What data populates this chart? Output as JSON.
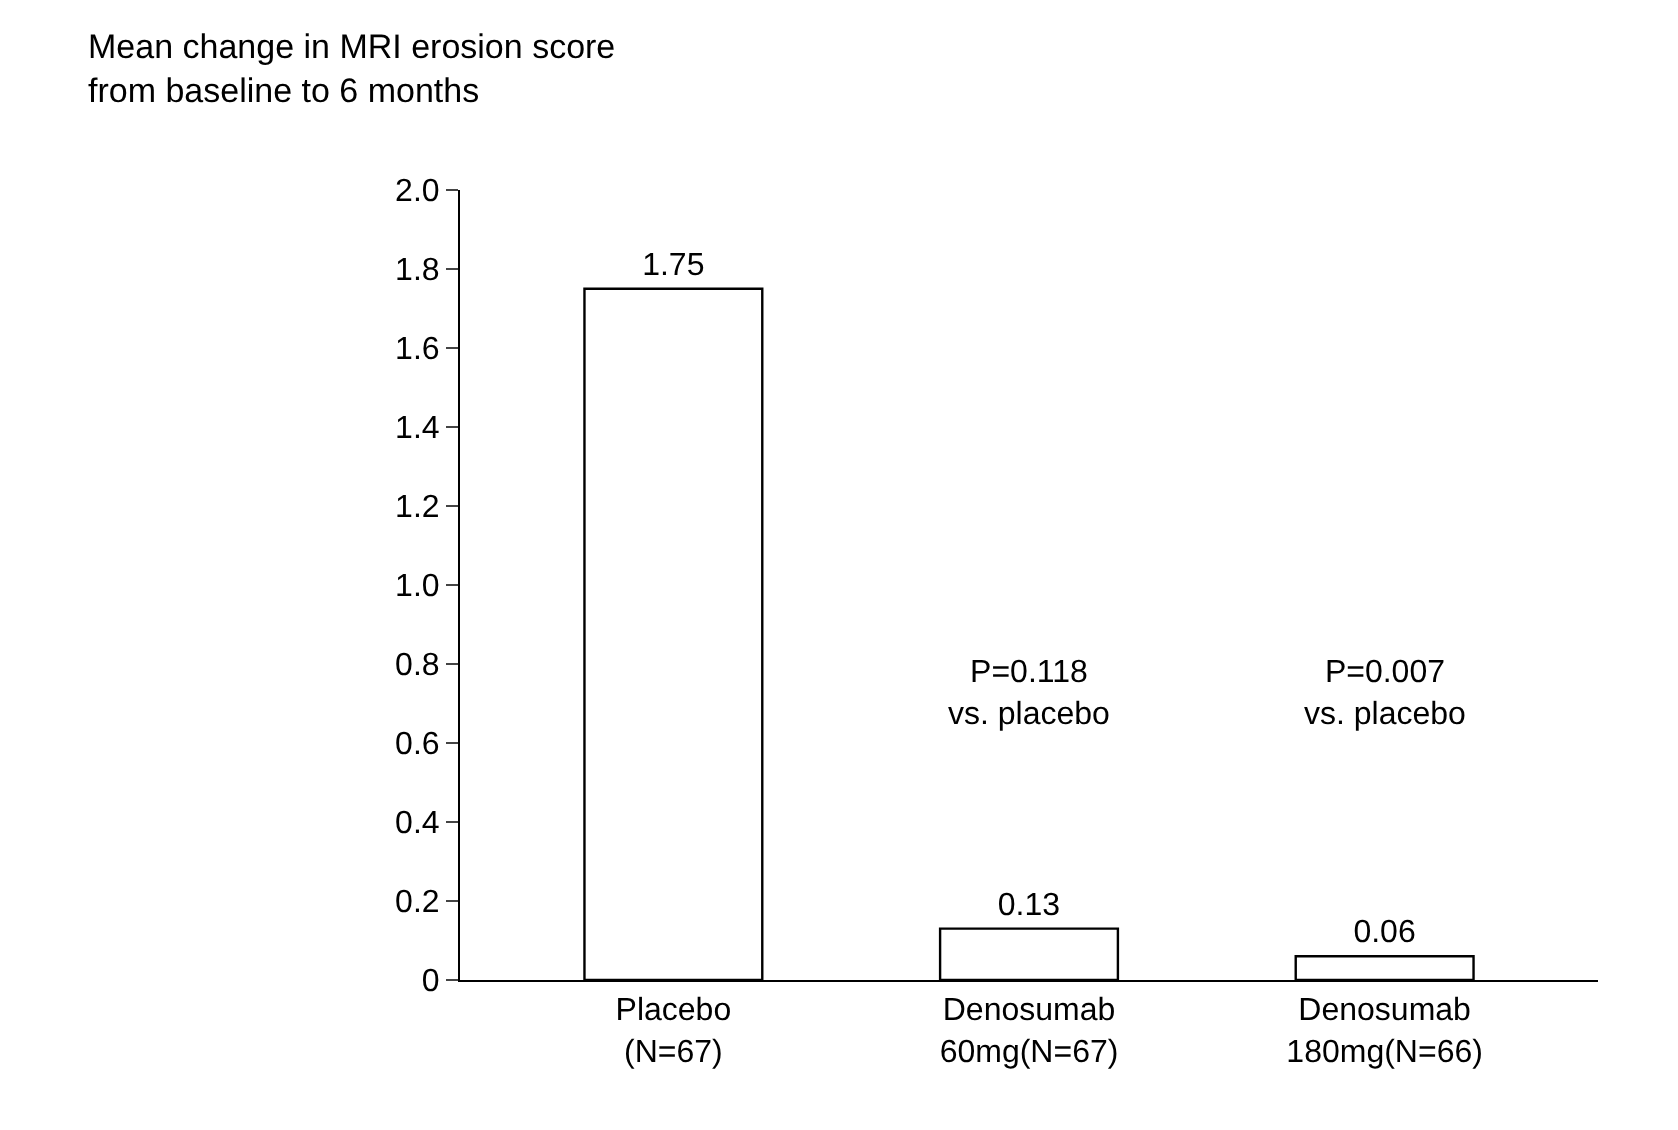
{
  "chart_data": {
    "type": "bar",
    "ylabel": "Mean change in MRI erosion score\nfrom baseline to 6 months",
    "categories": [
      "Placebo\n(N=67)",
      "Denosumab\n60mg(N=67)",
      "Denosumab\n180mg(N=66)"
    ],
    "values": [
      1.75,
      0.13,
      0.06
    ],
    "color": "#ffffff",
    "data_labels": true,
    "ylim": [
      0,
      2.0
    ],
    "yticks": [
      0,
      {
        "value": 0.2,
        "label": "0.2"
      },
      {
        "value": 0.4,
        "label": "0.4"
      },
      {
        "value": 0.6,
        "label": "0.6"
      },
      {
        "value": 0.8,
        "label": "0.8"
      },
      {
        "value": 1.0,
        "label": "1.0"
      },
      {
        "value": 1.2,
        "label": "1.2"
      },
      {
        "value": 1.4,
        "label": "1.4"
      },
      {
        "value": 1.6,
        "label": "1.6"
      },
      {
        "value": 1.8,
        "label": "1.8"
      },
      {
        "value": 2.0,
        "label": "2.0"
      }
    ],
    "annotations": [
      "P=0.118\nvs. placebo",
      "P=0.007\nvs. placebo"
    ]
  }
}
